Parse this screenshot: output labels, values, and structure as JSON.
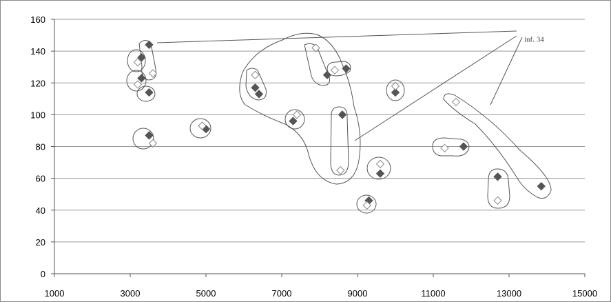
{
  "chart_data": {
    "type": "scatter",
    "title": "",
    "xlabel": "",
    "ylabel": "",
    "xlim": [
      1000,
      15000
    ],
    "ylim": [
      0,
      160
    ],
    "grid": "horizontal",
    "x_ticks": [
      1000,
      3000,
      5000,
      7000,
      9000,
      11000,
      13000,
      15000
    ],
    "y_ticks": [
      0,
      20,
      40,
      60,
      80,
      100,
      120,
      140,
      160
    ],
    "series": [
      {
        "marker": "filled-diamond",
        "color": "#555555",
        "points": [
          [
            3300,
            136
          ],
          [
            3500,
            144
          ],
          [
            3300,
            123
          ],
          [
            3500,
            114
          ],
          [
            3500,
            87
          ],
          [
            5000,
            91
          ],
          [
            6300,
            117
          ],
          [
            6400,
            113
          ],
          [
            7300,
            96
          ],
          [
            8200,
            125
          ],
          [
            8700,
            129
          ],
          [
            8600,
            100
          ],
          [
            9300,
            46
          ],
          [
            9600,
            63
          ],
          [
            10000,
            114
          ],
          [
            11800,
            80
          ],
          [
            12700,
            61
          ],
          [
            13850,
            55
          ]
        ]
      },
      {
        "marker": "hollow-diamond",
        "color": "#888888",
        "points": [
          [
            3200,
            133
          ],
          [
            3600,
            126
          ],
          [
            3200,
            119
          ],
          [
            3600,
            82
          ],
          [
            4900,
            93
          ],
          [
            6300,
            125
          ],
          [
            7400,
            100
          ],
          [
            7900,
            142
          ],
          [
            8400,
            128
          ],
          [
            8550,
            65
          ],
          [
            9250,
            43
          ],
          [
            9600,
            69
          ],
          [
            10000,
            118
          ],
          [
            11300,
            79
          ],
          [
            11600,
            108
          ],
          [
            12700,
            46
          ]
        ]
      }
    ],
    "annotations": [
      {
        "text": "inf. 34",
        "x": 13400,
        "y": 146
      }
    ]
  }
}
